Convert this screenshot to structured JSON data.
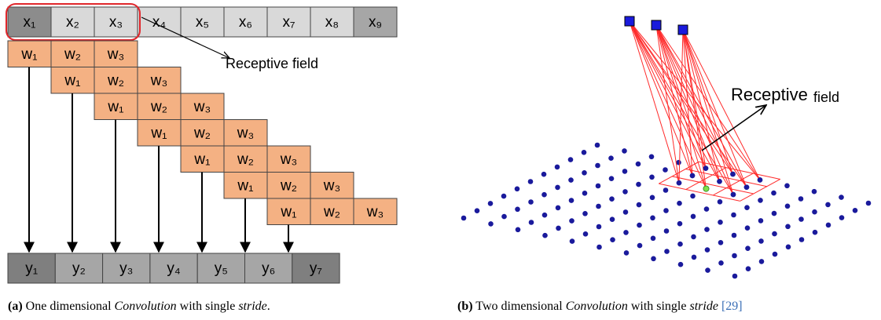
{
  "panel_a": {
    "inputs": [
      "x₁",
      "x₂",
      "x₃",
      "x₄",
      "x₅",
      "x₆",
      "x₇",
      "x₈",
      "x₉"
    ],
    "weights": [
      [
        "w₁",
        "w₂",
        "w₃"
      ],
      [
        "w₁",
        "w₂",
        "w₃"
      ],
      [
        "w₁",
        "w₂",
        "w₃"
      ],
      [
        "w₁",
        "w₂",
        "w₃"
      ],
      [
        "w₁",
        "w₂",
        "w₃"
      ],
      [
        "w₁",
        "w₂",
        "w₃"
      ],
      [
        "w₁",
        "w₂",
        "w₃"
      ]
    ],
    "outputs": [
      "y₁",
      "y₂",
      "y₃",
      "y₄",
      "y₅",
      "y₆",
      "y₇"
    ],
    "annotation": "Receptive field",
    "caption": {
      "label": "(a)",
      "parts": [
        "One dimensional",
        "Convolution",
        "with single",
        "stride",
        "."
      ]
    }
  },
  "panel_b": {
    "annotation": {
      "word1": "Receptive",
      "word2": "field"
    },
    "caption": {
      "label": "(b)",
      "parts": [
        "Two dimensional",
        "Convolution",
        "with single",
        "stride",
        "[29]"
      ]
    }
  }
}
